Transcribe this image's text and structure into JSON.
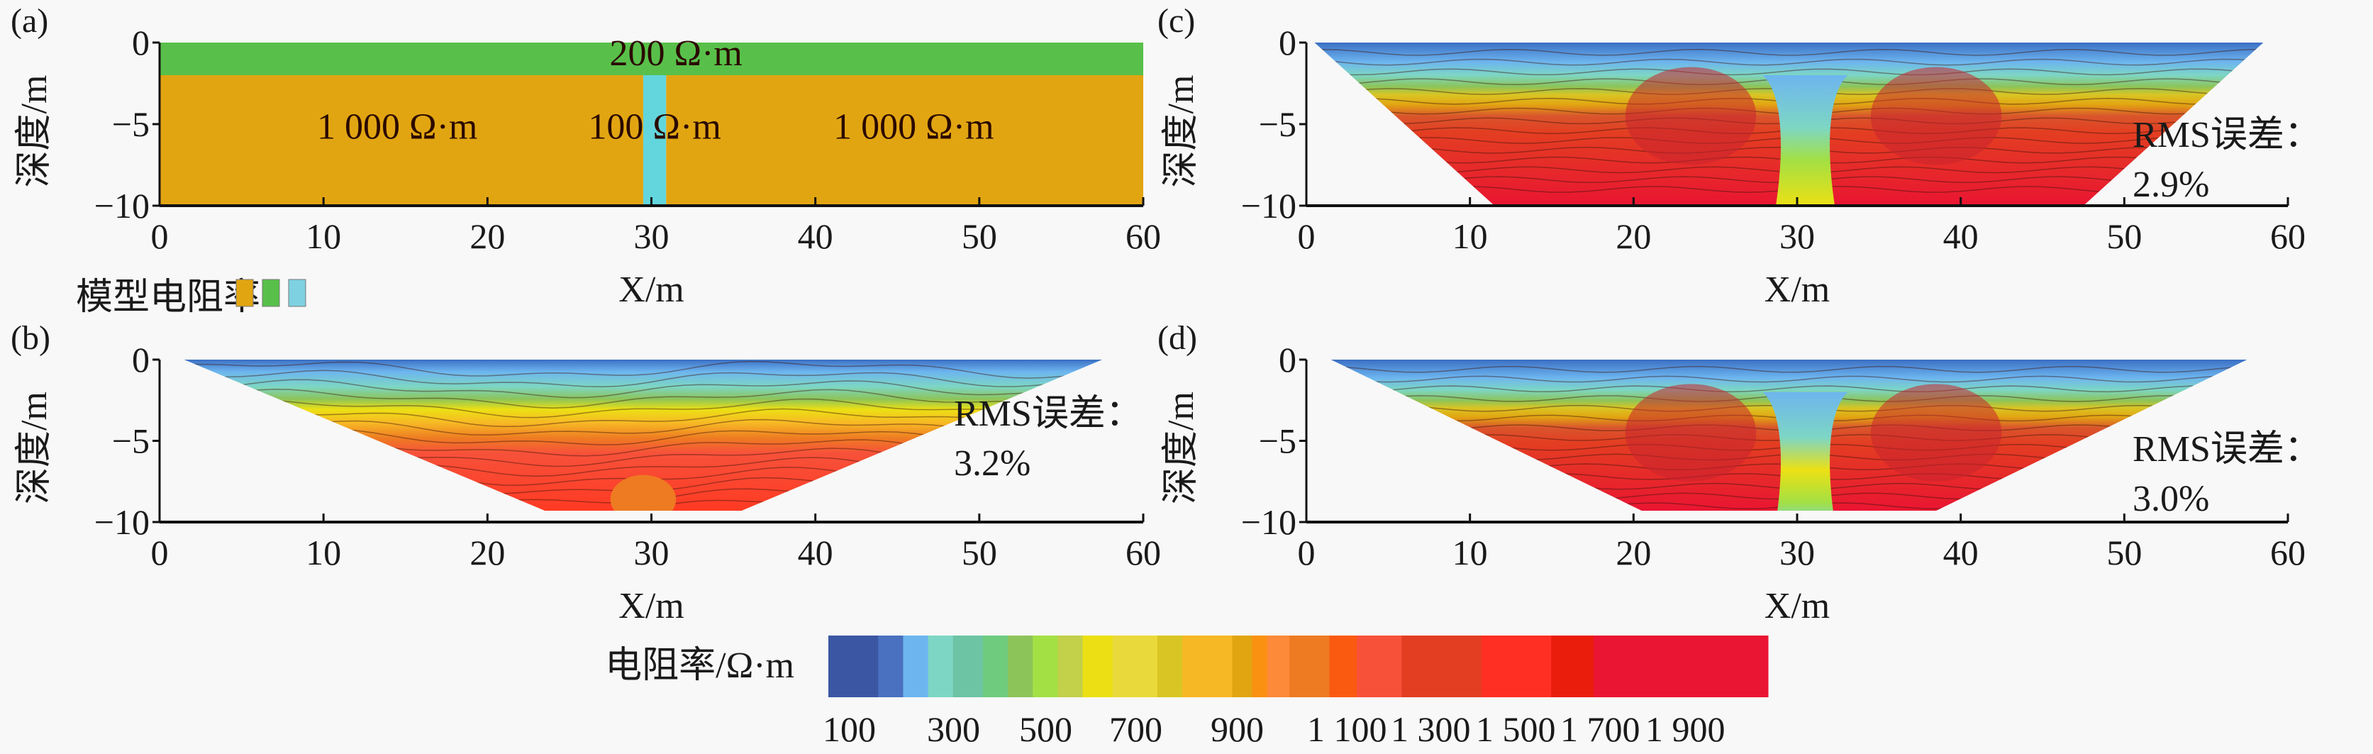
{
  "figure": {
    "colorbar": {
      "title": "电阻率/Ω·m",
      "tick_labels": [
        "100",
        "300",
        "500",
        "700",
        "900",
        "1 100",
        "1 300",
        "1 500",
        "1 700",
        "1 900"
      ],
      "colors": [
        "#3b57a3",
        "#4a70c0",
        "#6db5ef",
        "#7dd6c4",
        "#6cc4a4",
        "#6fcc7f",
        "#8cc45a",
        "#a3e044",
        "#c2d04a",
        "#ece014",
        "#ead93a",
        "#d9c524",
        "#f7b825",
        "#e2a512",
        "#fb9111",
        "#fc8a38",
        "#ee7b22",
        "#fa5a10",
        "#f7513a",
        "#e33e22",
        "#ff2f23",
        "#ea1d0d",
        "#ea1532",
        "#ea1532"
      ]
    }
  },
  "chart_data": [
    {
      "id": "a",
      "type": "heatmap",
      "panel_label": "(a)",
      "title": "",
      "xlabel": "X/m",
      "ylabel": "深度/m",
      "xlim": [
        0,
        60
      ],
      "ylim": [
        -10,
        0
      ],
      "x_ticks": [
        "0",
        "10",
        "20",
        "30",
        "40",
        "50",
        "60"
      ],
      "y_ticks": [
        "0",
        "−5",
        "−10"
      ],
      "model_layers": [
        {
          "name": "top-layer",
          "resistivity": 200,
          "x_range": [
            0,
            60
          ],
          "depth_range": [
            0,
            -2
          ],
          "color": "#58c04a",
          "label": "200 Ω·m"
        },
        {
          "name": "left-block",
          "resistivity": 1000,
          "x_range": [
            0,
            29.5
          ],
          "depth_range": [
            -2,
            -10
          ],
          "color": "#e2a512",
          "label": "1 000 Ω·m"
        },
        {
          "name": "dike",
          "resistivity": 100,
          "x_range": [
            29.5,
            30.9
          ],
          "depth_range": [
            -2,
            -10
          ],
          "color": "#62d6dc",
          "label": "100 Ω·m"
        },
        {
          "name": "right-block",
          "resistivity": 1000,
          "x_range": [
            30.9,
            60
          ],
          "depth_range": [
            -2,
            -10
          ],
          "color": "#e2a512",
          "label": "1 000 Ω·m"
        }
      ],
      "legend": {
        "title": "模型电阻率",
        "placement": "bottom-left",
        "swatches": [
          "#e2a512",
          "#58c04a",
          "#7ed1e0"
        ]
      }
    },
    {
      "id": "b",
      "type": "heatmap",
      "panel_label": "(b)",
      "xlabel": "X/m",
      "ylabel": "深度/m",
      "xlim": [
        0,
        60
      ],
      "ylim": [
        -10,
        0
      ],
      "x_ticks": [
        "0",
        "10",
        "20",
        "30",
        "40",
        "50",
        "60"
      ],
      "y_ticks": [
        "0",
        "−5",
        "−10"
      ],
      "section_outline": [
        [
          1.5,
          0
        ],
        [
          57.5,
          0
        ],
        [
          35.5,
          -9.3
        ],
        [
          23.5,
          -9.3
        ]
      ],
      "rms_label": "RMS误差：",
      "rms_value": "3.2%",
      "annotation_placement": "right",
      "bands": [
        {
          "depth_range": [
            0,
            -1.5
          ],
          "resistivity": "200-300"
        },
        {
          "depth_range": [
            -1.5,
            -3
          ],
          "resistivity": "400-700"
        },
        {
          "depth_range": [
            -3,
            -9.3
          ],
          "resistivity": "900-1 300"
        }
      ]
    },
    {
      "id": "c",
      "type": "heatmap",
      "panel_label": "(c)",
      "xlabel": "X/m",
      "ylabel": "深度/m",
      "xlim": [
        0,
        60
      ],
      "ylim": [
        -10,
        0
      ],
      "x_ticks": [
        "0",
        "10",
        "20",
        "30",
        "40",
        "50",
        "60"
      ],
      "y_ticks": [
        "0",
        "−5",
        "−10"
      ],
      "section_outline": [
        [
          0.5,
          0
        ],
        [
          58.5,
          0
        ],
        [
          47.5,
          -10
        ],
        [
          11.5,
          -10
        ]
      ],
      "rms_label": "RMS误差：",
      "rms_value": "2.9%",
      "annotation_placement": "right",
      "bands": [
        {
          "depth_range": [
            0,
            -2
          ],
          "resistivity": "200-300"
        },
        {
          "depth_range": [
            -2,
            -4
          ],
          "resistivity": "500-900"
        },
        {
          "depth_range": [
            -4,
            -10
          ],
          "resistivity": "1 100-1 900"
        }
      ],
      "anomaly": {
        "x_center": 30.5,
        "resistivity": "300-500"
      }
    },
    {
      "id": "d",
      "type": "heatmap",
      "panel_label": "(d)",
      "xlabel": "X/m",
      "ylabel": "深度/m",
      "xlim": [
        0,
        60
      ],
      "ylim": [
        -10,
        0
      ],
      "x_ticks": [
        "0",
        "10",
        "20",
        "30",
        "40",
        "50",
        "60"
      ],
      "y_ticks": [
        "0",
        "−5",
        "−10"
      ],
      "section_outline": [
        [
          1.5,
          0
        ],
        [
          57.5,
          0
        ],
        [
          38.5,
          -9.3
        ],
        [
          20.5,
          -9.3
        ]
      ],
      "rms_label": "RMS误差：",
      "rms_value": "3.0%",
      "annotation_placement": "right",
      "bands": [
        {
          "depth_range": [
            0,
            -2
          ],
          "resistivity": "200-300"
        },
        {
          "depth_range": [
            -2,
            -3.5
          ],
          "resistivity": "500-900"
        },
        {
          "depth_range": [
            -3.5,
            -9.3
          ],
          "resistivity": "1 100-1 900"
        }
      ],
      "anomaly": {
        "x_center": 30.5,
        "resistivity": "200-500"
      }
    }
  ]
}
